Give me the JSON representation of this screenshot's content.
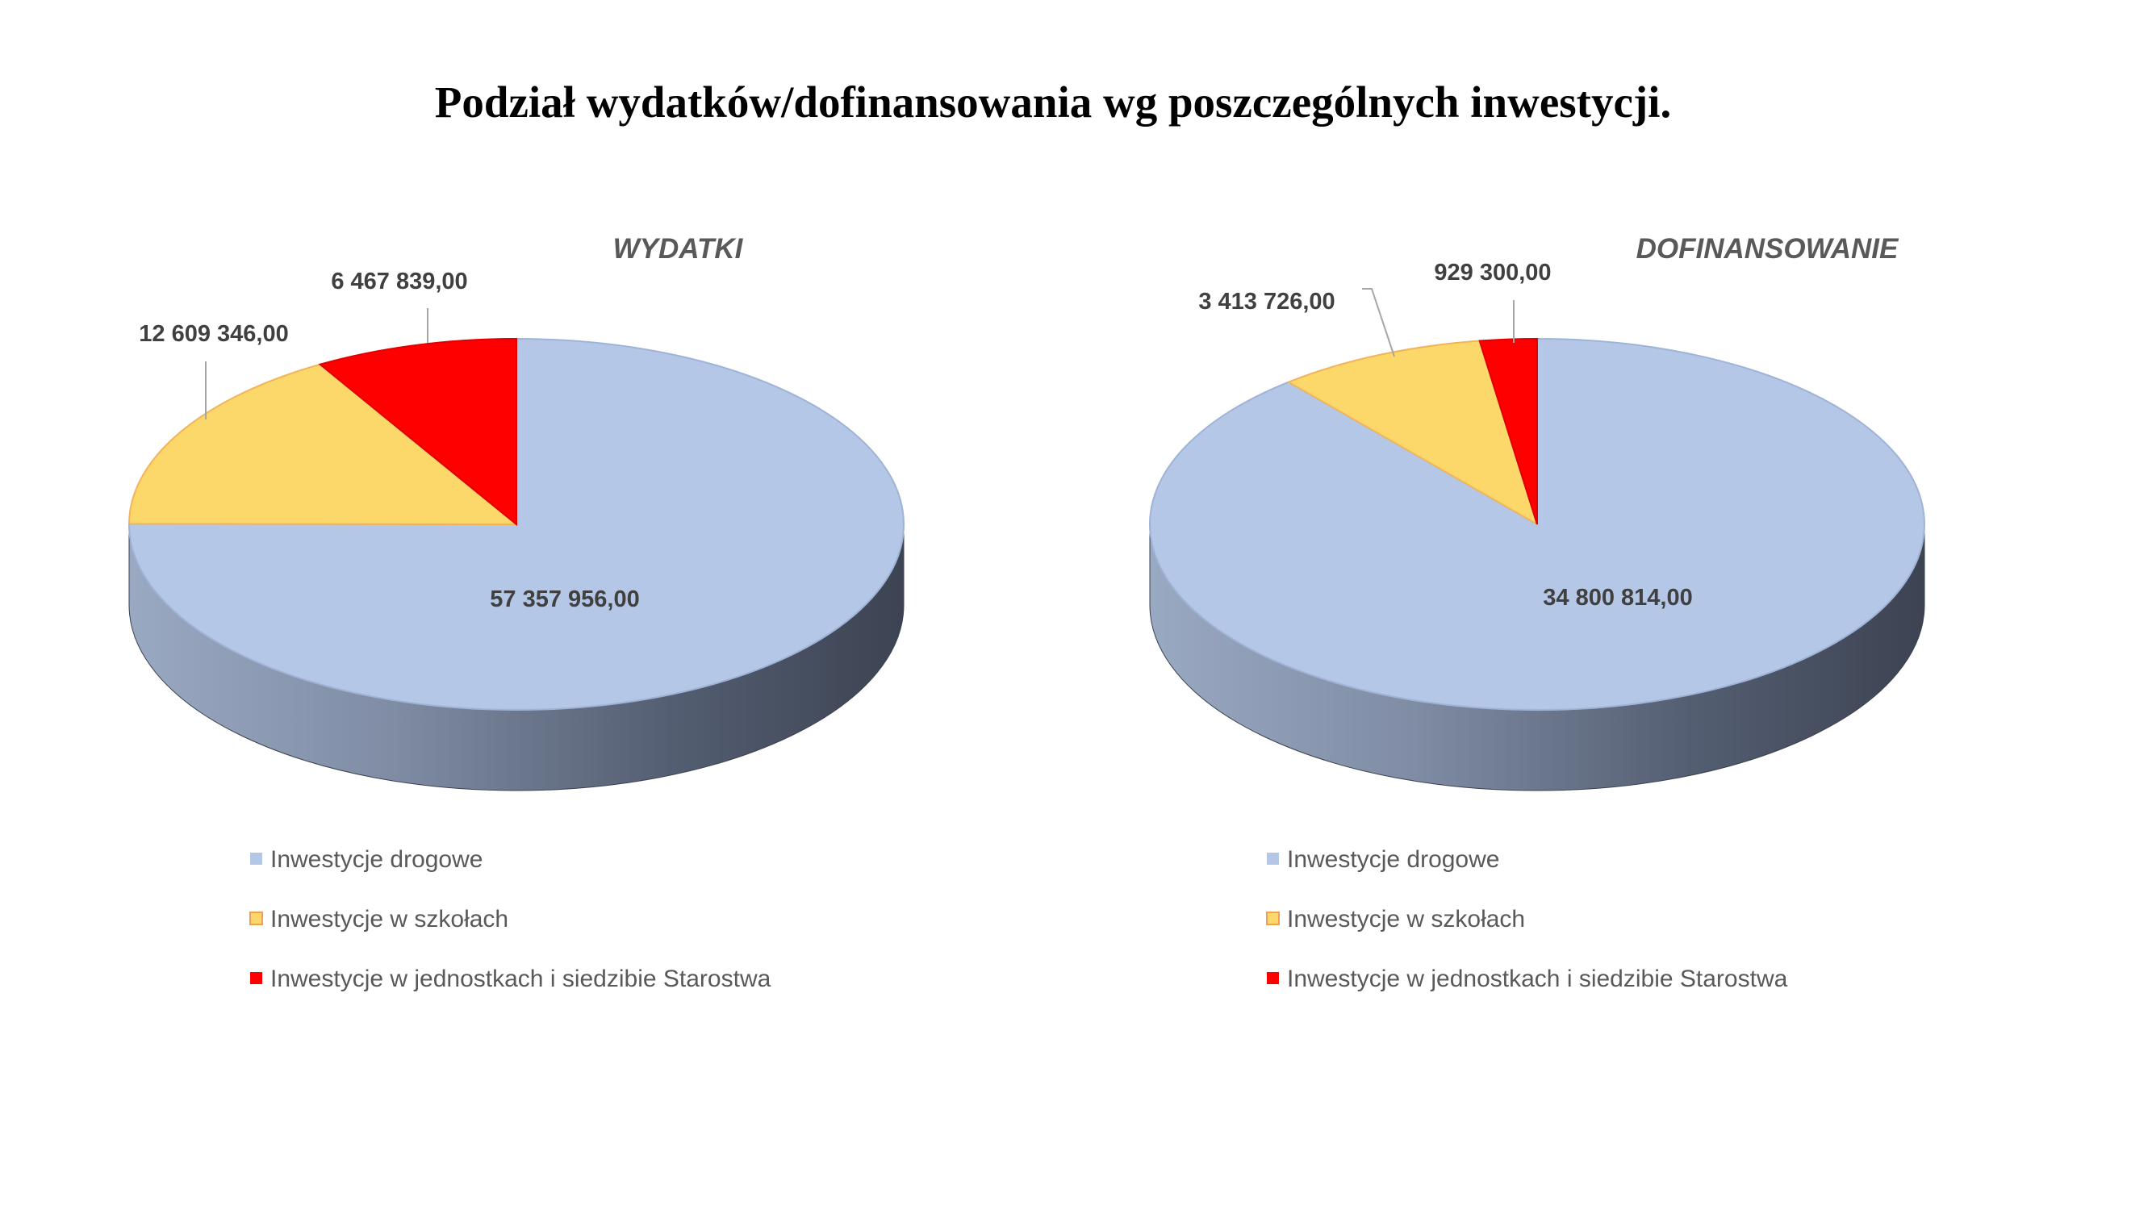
{
  "page_title": "Podział wydatków/dofinansowania wg poszczególnych inwestycji.",
  "chart_data": [
    {
      "type": "pie",
      "title": "WYDATKI",
      "categories": [
        "Inwestycje drogowe",
        "Inwestycje w szkołach",
        "Inwestycje w jednostkach i siedzibie Starostwa"
      ],
      "values": [
        57357956.0,
        12609346.0,
        6467839.0
      ],
      "labels": [
        "57 357 956,00",
        "12 609 346,00",
        "6 467 839,00"
      ],
      "colors": [
        "#b4c7e7",
        "#fcd76a",
        "#ff0000"
      ],
      "legend": "bottom"
    },
    {
      "type": "pie",
      "title": "DOFINANSOWANIE",
      "categories": [
        "Inwestycje drogowe",
        "Inwestycje w szkołach",
        "Inwestycje w jednostkach i siedzibie Starostwa"
      ],
      "values": [
        34800814.0,
        3413726.0,
        929300.0
      ],
      "labels": [
        "34 800 814,00",
        "3 413 726,00",
        "929 300,00"
      ],
      "colors": [
        "#b4c7e7",
        "#fcd76a",
        "#ff0000"
      ],
      "legend": "bottom"
    }
  ]
}
